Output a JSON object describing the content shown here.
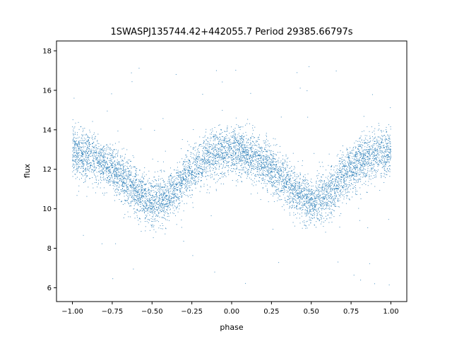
{
  "chart_data": {
    "type": "scatter",
    "title": "1SWASPJ135744.42+442055.7 Period 29385.66797s",
    "xlabel": "phase",
    "ylabel": "flux",
    "xlim": [
      -1.1,
      1.1
    ],
    "ylim": [
      5.3,
      18.5
    ],
    "xticks": [
      -1.0,
      -0.75,
      -0.5,
      -0.25,
      0.0,
      0.25,
      0.5,
      0.75,
      1.0
    ],
    "xtick_labels": [
      "−1.00",
      "−0.75",
      "−0.50",
      "−0.25",
      "0.00",
      "0.25",
      "0.50",
      "0.75",
      "1.00"
    ],
    "yticks": [
      6,
      8,
      10,
      12,
      14,
      16,
      18
    ],
    "ytick_labels": [
      "6",
      "8",
      "10",
      "12",
      "14",
      "16",
      "18"
    ],
    "grid": false,
    "legend": "none",
    "point_color": "#1f77b4",
    "series": [
      {
        "model": "folded light curve, phase -1 to 1, maxima near phase -1, 0, 1, minima near phase -0.5 and 0.5",
        "x": [
          -1.0,
          -0.9,
          -0.8,
          -0.7,
          -0.6,
          -0.5,
          -0.4,
          -0.3,
          -0.2,
          -0.1,
          0.0,
          0.1,
          0.2,
          0.3,
          0.4,
          0.5,
          0.6,
          0.7,
          0.8,
          0.9,
          1.0
        ],
        "y": [
          12.9,
          12.7,
          12.3,
          11.7,
          10.9,
          10.3,
          10.6,
          11.5,
          12.3,
          12.8,
          13.0,
          12.8,
          12.4,
          11.7,
          10.9,
          10.3,
          10.7,
          11.6,
          12.4,
          12.8,
          12.9
        ],
        "scatter_spread": 0.6
      }
    ]
  }
}
